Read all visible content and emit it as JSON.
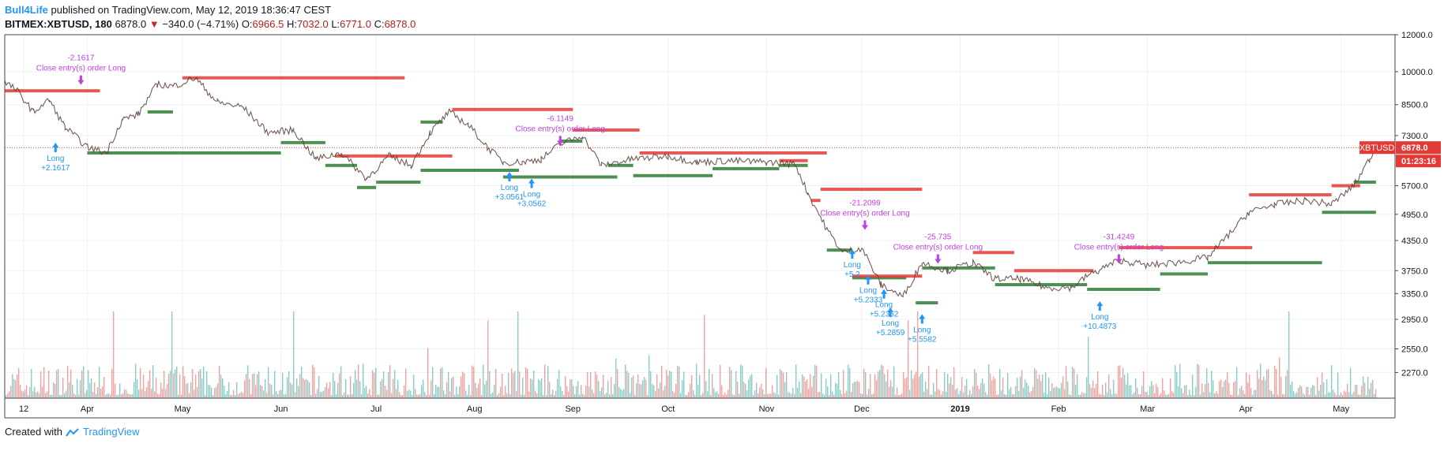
{
  "header": {
    "author": "Bull4Life",
    "published_text": "published on TradingView.com, May 12, 2019 18:36:47 CEST",
    "symbol": "BITMEX:XBTUSD, 180",
    "last": "6878.0",
    "change": "−340.0 (−4.71%)",
    "o_label": "O:",
    "o_value": "6966.5",
    "h_label": "H:",
    "h_value": "7032.0",
    "l_label": "L:",
    "l_value": "6771.0",
    "c_label": "C:",
    "c_value": "6878.0"
  },
  "footer": {
    "created_with": "Created with",
    "brand": "TradingView"
  },
  "colors": {
    "up": "#26a69a",
    "down": "#ef5350",
    "price_line": "#e53935",
    "long_blue": "#2196f3",
    "close_magenta": "#c040e0",
    "zone_green": "#2e7d32",
    "zone_red": "#e53935"
  },
  "chart_data": {
    "type": "line",
    "title": "",
    "xlabel": "",
    "ylabel": "",
    "ylim": [
      2000,
      12000
    ],
    "y_scale": "log",
    "y_ticks": [
      "12000.0",
      "10000.0",
      "8500.0",
      "7300.0",
      "6878.0",
      "5700.0",
      "4950.0",
      "4350.0",
      "3750.0",
      "3350.0",
      "2950.0",
      "2550.0",
      "2270.0"
    ],
    "y_tick_values": [
      12000,
      10000,
      8500,
      7300,
      5700,
      4950,
      4350,
      3750,
      3350,
      2950,
      2550,
      2270
    ],
    "x_ticks": [
      "12",
      "Apr",
      "May",
      "Jun",
      "Jul",
      "Aug",
      "Sep",
      "Oct",
      "Nov",
      "Dec",
      "2019",
      "Feb",
      "Mar",
      "Apr",
      "May"
    ],
    "x_tick_values": [
      "2018-03-12",
      "2018-04-01",
      "2018-05-01",
      "2018-06-01",
      "2018-07-01",
      "2018-08-01",
      "2018-09-01",
      "2018-10-01",
      "2018-11-01",
      "2018-12-01",
      "2019-01-01",
      "2019-02-01",
      "2019-03-01",
      "2019-04-01",
      "2019-05-01"
    ],
    "last_price": 6878.0,
    "last_price_label": "6878.0",
    "symbol_tag": "XBTUSD",
    "countdown": "01:23:16",
    "price_series": {
      "name": "",
      "x": [
        "2018-03-06",
        "2018-03-10",
        "2018-03-15",
        "2018-03-20",
        "2018-03-25",
        "2018-04-01",
        "2018-04-07",
        "2018-04-12",
        "2018-04-17",
        "2018-04-23",
        "2018-04-28",
        "2018-05-05",
        "2018-05-12",
        "2018-05-20",
        "2018-05-28",
        "2018-06-05",
        "2018-06-12",
        "2018-06-20",
        "2018-06-28",
        "2018-07-05",
        "2018-07-12",
        "2018-07-18",
        "2018-07-24",
        "2018-07-30",
        "2018-08-05",
        "2018-08-10",
        "2018-08-16",
        "2018-08-22",
        "2018-08-28",
        "2018-09-04",
        "2018-09-10",
        "2018-09-20",
        "2018-10-01",
        "2018-10-10",
        "2018-10-20",
        "2018-11-01",
        "2018-11-10",
        "2018-11-14",
        "2018-11-20",
        "2018-11-25",
        "2018-12-01",
        "2018-12-07",
        "2018-12-14",
        "2018-12-20",
        "2018-12-28",
        "2019-01-05",
        "2019-01-12",
        "2019-01-20",
        "2019-01-28",
        "2019-02-05",
        "2019-02-10",
        "2019-02-20",
        "2019-03-01",
        "2019-03-10",
        "2019-03-20",
        "2019-04-02",
        "2019-04-10",
        "2019-04-20",
        "2019-04-28",
        "2019-05-05",
        "2019-05-10",
        "2019-05-12"
      ],
      "y": [
        9500,
        9100,
        8200,
        8700,
        7600,
        6900,
        6700,
        7900,
        8100,
        9400,
        9300,
        9700,
        8600,
        8400,
        7400,
        7500,
        6500,
        6700,
        5900,
        6600,
        6300,
        7400,
        8200,
        7700,
        6900,
        6400,
        6400,
        6500,
        7000,
        7300,
        6300,
        6500,
        6600,
        6400,
        6450,
        6400,
        6350,
        5500,
        4600,
        4100,
        4200,
        3500,
        3300,
        3900,
        3750,
        3900,
        3600,
        3600,
        3450,
        3450,
        3650,
        3950,
        3850,
        3900,
        4000,
        5000,
        5200,
        5300,
        5200,
        5700,
        6500,
        6878
      ]
    },
    "support_zones": [
      {
        "from": "2018-04-01",
        "to": "2018-06-01",
        "y": 6700
      },
      {
        "from": "2018-04-20",
        "to": "2018-04-28",
        "y": 8200
      },
      {
        "from": "2018-06-01",
        "to": "2018-06-15",
        "y": 7050
      },
      {
        "from": "2018-06-15",
        "to": "2018-06-25",
        "y": 6300
      },
      {
        "from": "2018-06-25",
        "to": "2018-07-01",
        "y": 5650
      },
      {
        "from": "2018-07-01",
        "to": "2018-07-15",
        "y": 5800
      },
      {
        "from": "2018-07-15",
        "to": "2018-08-15",
        "y": 6150
      },
      {
        "from": "2018-07-15",
        "to": "2018-07-22",
        "y": 7800
      },
      {
        "from": "2018-08-10",
        "to": "2018-09-15",
        "y": 5950
      },
      {
        "from": "2018-08-28",
        "to": "2018-09-04",
        "y": 7100
      },
      {
        "from": "2018-09-20",
        "to": "2018-10-15",
        "y": 5990
      },
      {
        "from": "2018-09-12",
        "to": "2018-09-20",
        "y": 6300
      },
      {
        "from": "2018-10-15",
        "to": "2018-11-05",
        "y": 6200
      },
      {
        "from": "2018-11-05",
        "to": "2018-11-14",
        "y": 6300
      },
      {
        "from": "2018-11-20",
        "to": "2018-11-28",
        "y": 4150
      },
      {
        "from": "2018-11-28",
        "to": "2018-12-15",
        "y": 3620
      },
      {
        "from": "2018-12-18",
        "to": "2018-12-25",
        "y": 3200
      },
      {
        "from": "2018-12-20",
        "to": "2019-01-12",
        "y": 3800
      },
      {
        "from": "2019-01-12",
        "to": "2019-02-10",
        "y": 3500
      },
      {
        "from": "2019-02-10",
        "to": "2019-03-05",
        "y": 3420
      },
      {
        "from": "2019-03-05",
        "to": "2019-03-20",
        "y": 3690
      },
      {
        "from": "2019-03-20",
        "to": "2019-04-25",
        "y": 3900
      },
      {
        "from": "2019-04-25",
        "to": "2019-05-12",
        "y": 5000
      },
      {
        "from": "2019-05-05",
        "to": "2019-05-12",
        "y": 5800
      }
    ],
    "resistance_zones": [
      {
        "from": "2018-03-06",
        "to": "2018-04-05",
        "y": 9100
      },
      {
        "from": "2018-05-01",
        "to": "2018-07-10",
        "y": 9700
      },
      {
        "from": "2018-06-18",
        "to": "2018-07-05",
        "y": 6600
      },
      {
        "from": "2018-07-05",
        "to": "2018-07-25",
        "y": 6600
      },
      {
        "from": "2018-07-25",
        "to": "2018-09-01",
        "y": 8300
      },
      {
        "from": "2018-09-01",
        "to": "2018-09-22",
        "y": 7500
      },
      {
        "from": "2018-09-22",
        "to": "2018-11-20",
        "y": 6700
      },
      {
        "from": "2018-11-05",
        "to": "2018-11-14",
        "y": 6450
      },
      {
        "from": "2018-11-15",
        "to": "2018-11-18",
        "y": 5300
      },
      {
        "from": "2018-11-18",
        "to": "2018-12-20",
        "y": 5600
      },
      {
        "from": "2018-11-28",
        "to": "2018-12-20",
        "y": 3650
      },
      {
        "from": "2019-01-05",
        "to": "2019-01-18",
        "y": 4100
      },
      {
        "from": "2019-01-18",
        "to": "2019-02-12",
        "y": 3750
      },
      {
        "from": "2019-02-20",
        "to": "2019-04-03",
        "y": 4200
      },
      {
        "from": "2019-04-02",
        "to": "2019-04-28",
        "y": 5450
      },
      {
        "from": "2019-04-28",
        "to": "2019-05-07",
        "y": 5700
      }
    ],
    "signals": [
      {
        "kind": "close",
        "x": "2018-03-30",
        "y": 9300,
        "label": "Close entry(s) order Long",
        "value": "-2.1617"
      },
      {
        "kind": "long",
        "x": "2018-03-22",
        "y": 7100,
        "label": "Long",
        "value": "+2.1617"
      },
      {
        "kind": "long",
        "x": "2018-08-12",
        "y": 6150,
        "label": "Long",
        "value": "+3.0561"
      },
      {
        "kind": "long",
        "x": "2018-08-19",
        "y": 5950,
        "label": "Long",
        "value": "+3.0562"
      },
      {
        "kind": "close",
        "x": "2018-08-28",
        "y": 6900,
        "label": "Close entry(s) order Long",
        "value": "-6.1149"
      },
      {
        "kind": "close",
        "x": "2018-12-02",
        "y": 4550,
        "label": "Close entry(s) order Long",
        "value": "-21.2099"
      },
      {
        "kind": "long",
        "x": "2018-11-28",
        "y": 4200,
        "label": "Long",
        "value": "+5.2"
      },
      {
        "kind": "long",
        "x": "2018-12-03",
        "y": 3700,
        "label": "Long",
        "value": "+5.2333"
      },
      {
        "kind": "long",
        "x": "2018-12-08",
        "y": 3450,
        "label": "Long",
        "value": "+5.2352"
      },
      {
        "kind": "long",
        "x": "2018-12-10",
        "y": 3150,
        "label": "Long",
        "value": "+5.2859"
      },
      {
        "kind": "close",
        "x": "2018-12-25",
        "y": 3850,
        "label": "Close entry(s) order Long",
        "value": "-25.735"
      },
      {
        "kind": "long",
        "x": "2018-12-20",
        "y": 3050,
        "label": "Long",
        "value": "+5.5582"
      },
      {
        "kind": "close",
        "x": "2019-02-20",
        "y": 3850,
        "label": "Close entry(s) order Long",
        "value": "-31.4249"
      },
      {
        "kind": "long",
        "x": "2019-02-14",
        "y": 3250,
        "label": "Long",
        "value": "+10.4873"
      }
    ],
    "volume_note": "volume histogram at bottom of price pane"
  }
}
